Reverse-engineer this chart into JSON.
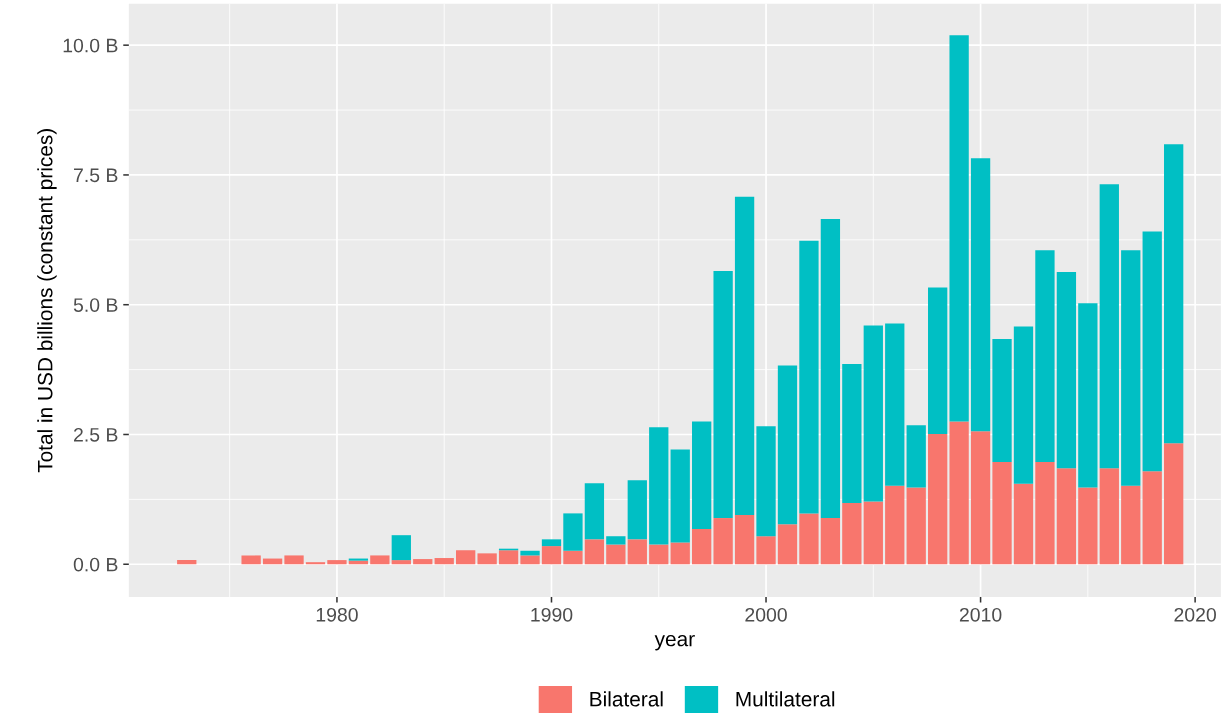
{
  "chart_data": {
    "type": "bar",
    "stacked": true,
    "xlabel": "year",
    "ylabel": "Total in USD billions (constant prices)",
    "x": [
      1973,
      1976,
      1977,
      1978,
      1979,
      1980,
      1981,
      1982,
      1983,
      1984,
      1985,
      1986,
      1987,
      1988,
      1989,
      1990,
      1991,
      1992,
      1993,
      1994,
      1995,
      1996,
      1997,
      1998,
      1999,
      2000,
      2001,
      2002,
      2003,
      2004,
      2005,
      2006,
      2007,
      2008,
      2009,
      2010,
      2011,
      2012,
      2013,
      2014,
      2015,
      2016,
      2017,
      2018,
      2019
    ],
    "series": [
      {
        "name": "Bilateral",
        "color": "#f8766d",
        "values": [
          0.08,
          0.17,
          0.11,
          0.17,
          0.04,
          0.08,
          0.07,
          0.17,
          0.08,
          0.1,
          0.12,
          0.27,
          0.21,
          0.27,
          0.17,
          0.35,
          0.26,
          0.48,
          0.38,
          0.48,
          0.38,
          0.42,
          0.68,
          0.89,
          0.95,
          0.54,
          0.77,
          0.98,
          0.89,
          1.18,
          1.21,
          1.51,
          1.48,
          2.51,
          2.75,
          2.56,
          1.97,
          1.55,
          1.97,
          1.85,
          1.48,
          1.85,
          1.51,
          1.79,
          2.33
        ]
      },
      {
        "name": "Multilateral",
        "color": "#00bfc4",
        "values": [
          null,
          null,
          null,
          null,
          null,
          null,
          0.04,
          null,
          0.48,
          null,
          null,
          null,
          null,
          0.03,
          0.09,
          0.13,
          0.72,
          1.08,
          0.16,
          1.14,
          2.26,
          1.79,
          2.07,
          4.76,
          6.13,
          2.12,
          3.06,
          5.25,
          5.76,
          2.68,
          3.39,
          3.13,
          1.2,
          2.82,
          7.44,
          5.26,
          2.37,
          3.03,
          4.08,
          3.78,
          3.55,
          5.47,
          4.54,
          4.62,
          5.76
        ]
      }
    ],
    "xlim": [
      1970.3,
      2021.2
    ],
    "xticks": [
      1980,
      1990,
      2000,
      2010,
      2020
    ],
    "ylim": [
      -0.63,
      10.8
    ],
    "yticks": [
      {
        "value": 0,
        "label": "0.0 B"
      },
      {
        "value": 2.5,
        "label": "2.5 B"
      },
      {
        "value": 5,
        "label": "5.0 B"
      },
      {
        "value": 7.5,
        "label": "7.5 B"
      },
      {
        "value": 10,
        "label": "10.0 B"
      }
    ],
    "grid": true,
    "legend": "bottom"
  }
}
